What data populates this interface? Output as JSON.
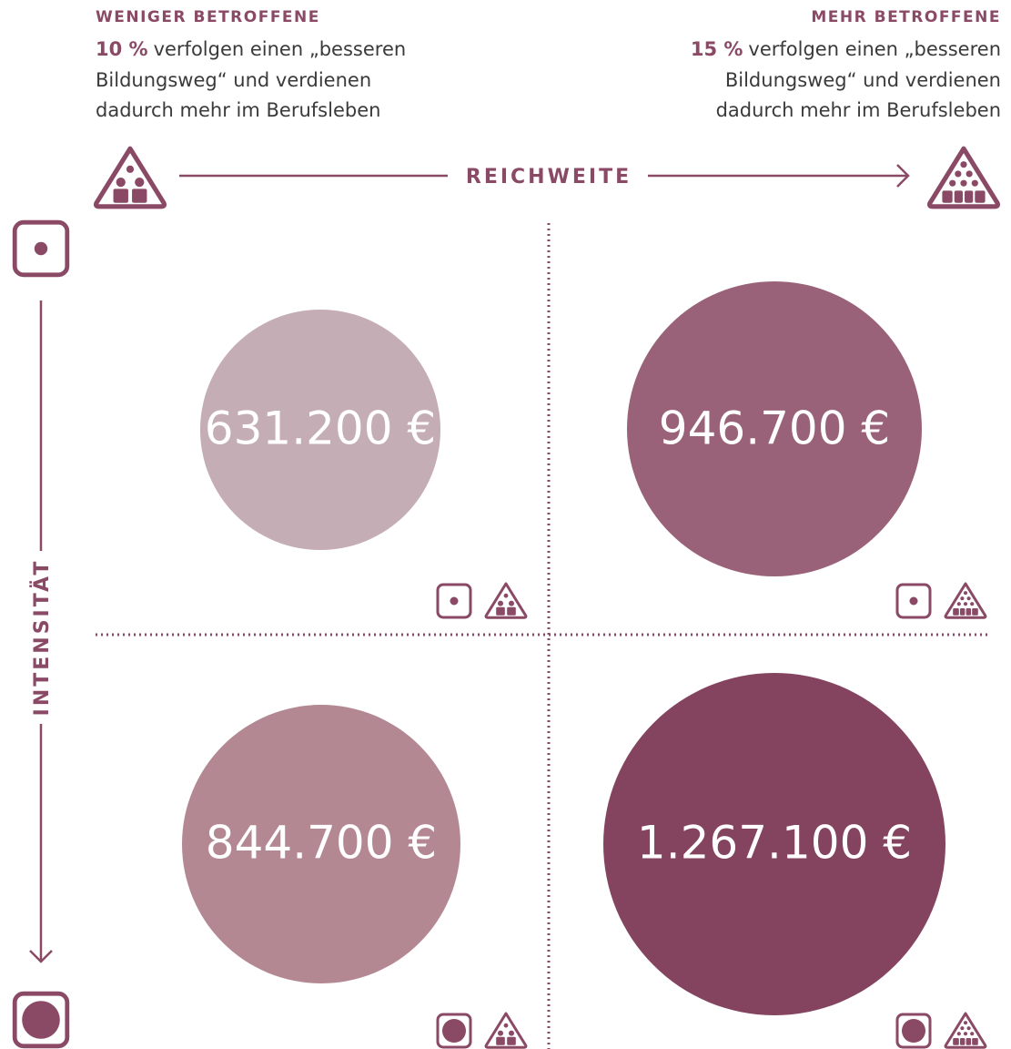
{
  "header": {
    "left": {
      "title": "WENIGER BETROFFENE",
      "share": "10 %",
      "lines": [
        "verfolgen einen „besseren",
        "Bildungsweg“ und verdienen",
        "dadurch mehr im Berufsleben"
      ]
    },
    "right": {
      "title": "MEHR BETROFFENE",
      "share": "15 %",
      "lines": [
        "verfolgen einen „besseren",
        "Bildungsweg“ und verdienen",
        "dadurch mehr im Berufsleben"
      ]
    }
  },
  "axes": {
    "x": "REICHWEITE",
    "y": "INTENSITÄT"
  },
  "cells": [
    {
      "label": "631.200 €"
    },
    {
      "label": "946.700 €"
    },
    {
      "label": "844.700 €"
    },
    {
      "label": "1.267.100 €"
    }
  ]
}
